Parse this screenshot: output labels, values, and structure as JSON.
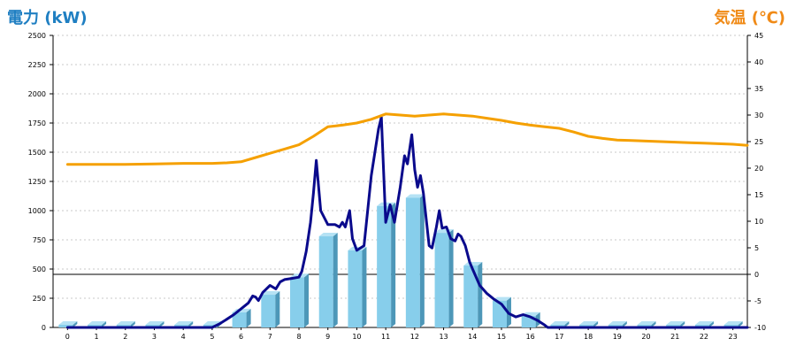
{
  "chart_data": {
    "type": "bar",
    "title_left": "電力 (kW)",
    "title_right": "気温 (℃)",
    "categories": [
      "0",
      "1",
      "2",
      "3",
      "4",
      "5",
      "6",
      "7",
      "8",
      "9",
      "10",
      "11",
      "12",
      "13",
      "14",
      "15",
      "16",
      "17",
      "18",
      "19",
      "20",
      "21",
      "22",
      "23"
    ],
    "y_left": {
      "min": 0,
      "max": 2500,
      "ticks": [
        0,
        250,
        500,
        750,
        1000,
        1250,
        1500,
        1750,
        2000,
        2250,
        2500
      ]
    },
    "y_right": {
      "min": -10,
      "max": 45,
      "ticks": [
        -10,
        -5,
        0,
        5,
        10,
        15,
        20,
        25,
        30,
        35,
        40,
        45
      ]
    },
    "grid": true,
    "series": [
      {
        "kind": "bar",
        "axis": "left",
        "color": "#87ceeb",
        "values": [
          0,
          0,
          0,
          0,
          0,
          0,
          130,
          280,
          430,
          780,
          660,
          1040,
          1110,
          810,
          530,
          230,
          100,
          0,
          0,
          0,
          0,
          0,
          0,
          0
        ]
      },
      {
        "kind": "line",
        "axis": "left",
        "color": "#0a0a8c",
        "points": [
          [
            0,
            0
          ],
          [
            1,
            0
          ],
          [
            2,
            0
          ],
          [
            3,
            0
          ],
          [
            4,
            0
          ],
          [
            5,
            0
          ],
          [
            5.25,
            30
          ],
          [
            5.5,
            70
          ],
          [
            5.75,
            110
          ],
          [
            6,
            160
          ],
          [
            6.25,
            210
          ],
          [
            6.4,
            270
          ],
          [
            6.5,
            260
          ],
          [
            6.6,
            230
          ],
          [
            6.75,
            300
          ],
          [
            7,
            360
          ],
          [
            7.2,
            330
          ],
          [
            7.35,
            390
          ],
          [
            7.5,
            410
          ],
          [
            7.75,
            420
          ],
          [
            8,
            430
          ],
          [
            8.1,
            480
          ],
          [
            8.25,
            650
          ],
          [
            8.4,
            900
          ],
          [
            8.5,
            1150
          ],
          [
            8.6,
            1430
          ],
          [
            8.75,
            1000
          ],
          [
            9,
            880
          ],
          [
            9.25,
            880
          ],
          [
            9.4,
            860
          ],
          [
            9.5,
            900
          ],
          [
            9.6,
            860
          ],
          [
            9.75,
            1000
          ],
          [
            9.85,
            760
          ],
          [
            10,
            660
          ],
          [
            10.25,
            700
          ],
          [
            10.5,
            1300
          ],
          [
            10.75,
            1700
          ],
          [
            10.85,
            1800
          ],
          [
            11,
            900
          ],
          [
            11.15,
            1050
          ],
          [
            11.3,
            900
          ],
          [
            11.5,
            1200
          ],
          [
            11.65,
            1470
          ],
          [
            11.75,
            1400
          ],
          [
            11.9,
            1650
          ],
          [
            12,
            1350
          ],
          [
            12.1,
            1200
          ],
          [
            12.2,
            1300
          ],
          [
            12.3,
            1150
          ],
          [
            12.5,
            700
          ],
          [
            12.6,
            680
          ],
          [
            12.75,
            860
          ],
          [
            12.85,
            1000
          ],
          [
            12.95,
            850
          ],
          [
            13.1,
            860
          ],
          [
            13.25,
            760
          ],
          [
            13.4,
            740
          ],
          [
            13.5,
            800
          ],
          [
            13.6,
            780
          ],
          [
            13.75,
            700
          ],
          [
            13.9,
            560
          ],
          [
            14,
            500
          ],
          [
            14.25,
            360
          ],
          [
            14.5,
            290
          ],
          [
            14.75,
            240
          ],
          [
            15,
            200
          ],
          [
            15.25,
            120
          ],
          [
            15.5,
            90
          ],
          [
            15.75,
            110
          ],
          [
            16,
            90
          ],
          [
            16.25,
            60
          ],
          [
            16.5,
            20
          ],
          [
            16.6,
            0
          ],
          [
            23.5,
            0
          ]
        ]
      },
      {
        "kind": "line",
        "axis": "right",
        "color": "#f5a000",
        "points": [
          [
            0,
            20.7
          ],
          [
            1,
            20.7
          ],
          [
            2,
            20.7
          ],
          [
            3,
            20.8
          ],
          [
            4,
            20.9
          ],
          [
            5,
            20.9
          ],
          [
            5.5,
            21.0
          ],
          [
            6,
            21.2
          ],
          [
            6.5,
            22.0
          ],
          [
            7,
            22.8
          ],
          [
            7.5,
            23.6
          ],
          [
            8,
            24.4
          ],
          [
            8.5,
            26.0
          ],
          [
            9,
            27.8
          ],
          [
            9.5,
            28.1
          ],
          [
            10,
            28.5
          ],
          [
            10.5,
            29.2
          ],
          [
            11,
            30.2
          ],
          [
            11.5,
            30.0
          ],
          [
            12,
            29.8
          ],
          [
            12.5,
            30.0
          ],
          [
            13,
            30.2
          ],
          [
            13.5,
            30.0
          ],
          [
            14,
            29.8
          ],
          [
            14.5,
            29.4
          ],
          [
            15,
            29.0
          ],
          [
            15.5,
            28.5
          ],
          [
            16,
            28.1
          ],
          [
            16.5,
            27.8
          ],
          [
            17,
            27.5
          ],
          [
            17.5,
            26.8
          ],
          [
            18,
            26.0
          ],
          [
            18.5,
            25.6
          ],
          [
            19,
            25.3
          ],
          [
            19.5,
            25.2
          ],
          [
            20,
            25.1
          ],
          [
            20.5,
            25.0
          ],
          [
            21,
            24.9
          ],
          [
            21.5,
            24.8
          ],
          [
            22,
            24.7
          ],
          [
            22.5,
            24.6
          ],
          [
            23,
            24.5
          ],
          [
            23.5,
            24.3
          ]
        ]
      }
    ]
  }
}
